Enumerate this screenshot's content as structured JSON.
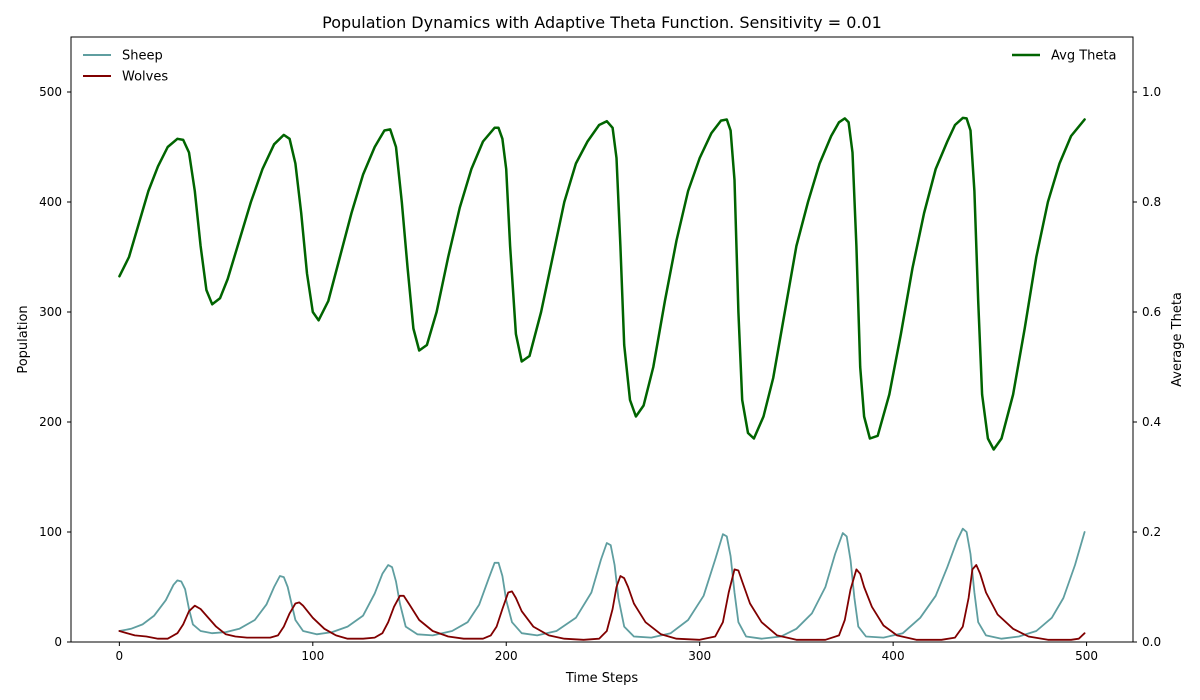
{
  "chart_data": {
    "type": "line",
    "title": "Population Dynamics with Adaptive Theta Function. Sensitivity = 0.01",
    "xlabel": "Time Steps",
    "ylabel": "Population",
    "y2label": "Average Theta",
    "xlim": [
      -25,
      524
    ],
    "ylim": [
      0,
      550
    ],
    "y2lim": [
      0,
      1.1
    ],
    "xticks": [
      0,
      100,
      200,
      300,
      400,
      500
    ],
    "yticks": [
      0,
      100,
      200,
      300,
      400,
      500
    ],
    "y2ticks": [
      0.0,
      0.2,
      0.4,
      0.6,
      0.8,
      1.0
    ],
    "legend_left": "upper-left",
    "legend_right": "upper-right",
    "series": [
      {
        "name": "Sheep",
        "axis": "left",
        "color": "#5f9ea0",
        "points": [
          [
            0,
            10
          ],
          [
            6,
            12
          ],
          [
            12,
            16
          ],
          [
            18,
            24
          ],
          [
            24,
            38
          ],
          [
            28,
            52
          ],
          [
            30,
            56
          ],
          [
            32,
            55
          ],
          [
            34,
            48
          ],
          [
            36,
            30
          ],
          [
            38,
            16
          ],
          [
            42,
            10
          ],
          [
            48,
            8
          ],
          [
            55,
            9
          ],
          [
            62,
            12
          ],
          [
            70,
            20
          ],
          [
            76,
            34
          ],
          [
            80,
            50
          ],
          [
            83,
            60
          ],
          [
            85,
            59
          ],
          [
            87,
            50
          ],
          [
            89,
            35
          ],
          [
            91,
            20
          ],
          [
            95,
            10
          ],
          [
            102,
            7
          ],
          [
            110,
            9
          ],
          [
            118,
            14
          ],
          [
            126,
            24
          ],
          [
            132,
            44
          ],
          [
            136,
            62
          ],
          [
            139,
            70
          ],
          [
            141,
            68
          ],
          [
            143,
            55
          ],
          [
            145,
            35
          ],
          [
            148,
            14
          ],
          [
            154,
            7
          ],
          [
            162,
            6
          ],
          [
            172,
            10
          ],
          [
            180,
            18
          ],
          [
            186,
            34
          ],
          [
            191,
            58
          ],
          [
            194,
            72
          ],
          [
            196,
            72
          ],
          [
            198,
            60
          ],
          [
            200,
            38
          ],
          [
            203,
            18
          ],
          [
            208,
            8
          ],
          [
            216,
            6
          ],
          [
            226,
            10
          ],
          [
            236,
            22
          ],
          [
            244,
            45
          ],
          [
            249,
            75
          ],
          [
            252,
            90
          ],
          [
            254,
            88
          ],
          [
            256,
            70
          ],
          [
            258,
            40
          ],
          [
            261,
            14
          ],
          [
            266,
            5
          ],
          [
            275,
            4
          ],
          [
            285,
            8
          ],
          [
            294,
            20
          ],
          [
            302,
            42
          ],
          [
            308,
            75
          ],
          [
            312,
            98
          ],
          [
            314,
            96
          ],
          [
            316,
            78
          ],
          [
            318,
            45
          ],
          [
            320,
            18
          ],
          [
            324,
            5
          ],
          [
            332,
            3
          ],
          [
            342,
            5
          ],
          [
            350,
            12
          ],
          [
            358,
            26
          ],
          [
            365,
            50
          ],
          [
            370,
            80
          ],
          [
            374,
            99
          ],
          [
            376,
            96
          ],
          [
            378,
            74
          ],
          [
            380,
            40
          ],
          [
            382,
            14
          ],
          [
            386,
            5
          ],
          [
            395,
            4
          ],
          [
            405,
            8
          ],
          [
            414,
            22
          ],
          [
            422,
            42
          ],
          [
            428,
            68
          ],
          [
            433,
            92
          ],
          [
            436,
            103
          ],
          [
            438,
            100
          ],
          [
            440,
            80
          ],
          [
            442,
            45
          ],
          [
            444,
            18
          ],
          [
            448,
            6
          ],
          [
            456,
            3
          ],
          [
            465,
            5
          ],
          [
            474,
            10
          ],
          [
            482,
            22
          ],
          [
            488,
            40
          ],
          [
            494,
            70
          ],
          [
            499,
            100
          ]
        ]
      },
      {
        "name": "Wolves",
        "axis": "left",
        "color": "#800000",
        "points": [
          [
            0,
            10
          ],
          [
            4,
            8
          ],
          [
            8,
            6
          ],
          [
            14,
            5
          ],
          [
            20,
            3
          ],
          [
            25,
            3
          ],
          [
            30,
            8
          ],
          [
            33,
            16
          ],
          [
            36,
            28
          ],
          [
            39,
            33
          ],
          [
            42,
            30
          ],
          [
            45,
            24
          ],
          [
            50,
            14
          ],
          [
            55,
            7
          ],
          [
            60,
            5
          ],
          [
            66,
            4
          ],
          [
            72,
            4
          ],
          [
            78,
            4
          ],
          [
            82,
            6
          ],
          [
            85,
            14
          ],
          [
            88,
            26
          ],
          [
            91,
            35
          ],
          [
            93,
            36
          ],
          [
            95,
            33
          ],
          [
            100,
            22
          ],
          [
            106,
            12
          ],
          [
            112,
            6
          ],
          [
            118,
            3
          ],
          [
            126,
            3
          ],
          [
            132,
            4
          ],
          [
            136,
            8
          ],
          [
            139,
            18
          ],
          [
            142,
            32
          ],
          [
            145,
            42
          ],
          [
            147,
            42
          ],
          [
            150,
            34
          ],
          [
            155,
            20
          ],
          [
            162,
            10
          ],
          [
            170,
            5
          ],
          [
            178,
            3
          ],
          [
            188,
            3
          ],
          [
            192,
            6
          ],
          [
            195,
            14
          ],
          [
            198,
            30
          ],
          [
            201,
            45
          ],
          [
            203,
            46
          ],
          [
            205,
            40
          ],
          [
            208,
            28
          ],
          [
            214,
            14
          ],
          [
            222,
            6
          ],
          [
            230,
            3
          ],
          [
            240,
            2
          ],
          [
            248,
            3
          ],
          [
            252,
            10
          ],
          [
            255,
            30
          ],
          [
            257,
            50
          ],
          [
            259,
            60
          ],
          [
            261,
            58
          ],
          [
            263,
            50
          ],
          [
            266,
            35
          ],
          [
            272,
            18
          ],
          [
            280,
            7
          ],
          [
            288,
            3
          ],
          [
            300,
            2
          ],
          [
            308,
            5
          ],
          [
            312,
            18
          ],
          [
            315,
            45
          ],
          [
            318,
            66
          ],
          [
            320,
            65
          ],
          [
            322,
            55
          ],
          [
            326,
            35
          ],
          [
            332,
            18
          ],
          [
            340,
            6
          ],
          [
            350,
            2
          ],
          [
            365,
            2
          ],
          [
            372,
            6
          ],
          [
            375,
            20
          ],
          [
            378,
            48
          ],
          [
            381,
            66
          ],
          [
            383,
            62
          ],
          [
            385,
            50
          ],
          [
            389,
            32
          ],
          [
            395,
            15
          ],
          [
            402,
            6
          ],
          [
            412,
            2
          ],
          [
            425,
            2
          ],
          [
            432,
            4
          ],
          [
            436,
            14
          ],
          [
            439,
            40
          ],
          [
            441,
            66
          ],
          [
            443,
            70
          ],
          [
            445,
            62
          ],
          [
            448,
            45
          ],
          [
            454,
            25
          ],
          [
            462,
            12
          ],
          [
            470,
            5
          ],
          [
            480,
            2
          ],
          [
            492,
            2
          ],
          [
            496,
            3
          ],
          [
            499,
            8
          ]
        ]
      },
      {
        "name": "Avg Theta",
        "axis": "right",
        "color": "#006400",
        "points": [
          [
            0,
            0.665
          ],
          [
            5,
            0.7
          ],
          [
            10,
            0.76
          ],
          [
            15,
            0.82
          ],
          [
            20,
            0.865
          ],
          [
            25,
            0.9
          ],
          [
            30,
            0.915
          ],
          [
            33,
            0.913
          ],
          [
            36,
            0.89
          ],
          [
            39,
            0.82
          ],
          [
            42,
            0.72
          ],
          [
            45,
            0.64
          ],
          [
            48,
            0.614
          ],
          [
            52,
            0.625
          ],
          [
            56,
            0.66
          ],
          [
            62,
            0.73
          ],
          [
            68,
            0.8
          ],
          [
            74,
            0.86
          ],
          [
            80,
            0.905
          ],
          [
            85,
            0.922
          ],
          [
            88,
            0.915
          ],
          [
            91,
            0.87
          ],
          [
            94,
            0.78
          ],
          [
            97,
            0.67
          ],
          [
            100,
            0.6
          ],
          [
            103,
            0.585
          ],
          [
            108,
            0.62
          ],
          [
            114,
            0.7
          ],
          [
            120,
            0.78
          ],
          [
            126,
            0.85
          ],
          [
            132,
            0.9
          ],
          [
            137,
            0.93
          ],
          [
            140,
            0.932
          ],
          [
            143,
            0.9
          ],
          [
            146,
            0.8
          ],
          [
            149,
            0.68
          ],
          [
            152,
            0.57
          ],
          [
            155,
            0.53
          ],
          [
            159,
            0.54
          ],
          [
            164,
            0.6
          ],
          [
            170,
            0.7
          ],
          [
            176,
            0.79
          ],
          [
            182,
            0.86
          ],
          [
            188,
            0.91
          ],
          [
            194,
            0.935
          ],
          [
            196,
            0.935
          ],
          [
            198,
            0.915
          ],
          [
            200,
            0.86
          ],
          [
            202,
            0.72
          ],
          [
            205,
            0.56
          ],
          [
            208,
            0.51
          ],
          [
            212,
            0.52
          ],
          [
            218,
            0.6
          ],
          [
            224,
            0.7
          ],
          [
            230,
            0.8
          ],
          [
            236,
            0.87
          ],
          [
            242,
            0.91
          ],
          [
            248,
            0.94
          ],
          [
            252,
            0.947
          ],
          [
            255,
            0.935
          ],
          [
            257,
            0.88
          ],
          [
            259,
            0.72
          ],
          [
            261,
            0.54
          ],
          [
            264,
            0.44
          ],
          [
            267,
            0.41
          ],
          [
            271,
            0.43
          ],
          [
            276,
            0.5
          ],
          [
            282,
            0.62
          ],
          [
            288,
            0.73
          ],
          [
            294,
            0.82
          ],
          [
            300,
            0.88
          ],
          [
            306,
            0.925
          ],
          [
            311,
            0.948
          ],
          [
            314,
            0.95
          ],
          [
            316,
            0.93
          ],
          [
            318,
            0.84
          ],
          [
            320,
            0.6
          ],
          [
            322,
            0.44
          ],
          [
            325,
            0.38
          ],
          [
            328,
            0.37
          ],
          [
            333,
            0.41
          ],
          [
            338,
            0.48
          ],
          [
            344,
            0.6
          ],
          [
            350,
            0.72
          ],
          [
            356,
            0.8
          ],
          [
            362,
            0.87
          ],
          [
            368,
            0.92
          ],
          [
            372,
            0.945
          ],
          [
            375,
            0.952
          ],
          [
            377,
            0.945
          ],
          [
            379,
            0.89
          ],
          [
            381,
            0.72
          ],
          [
            383,
            0.5
          ],
          [
            385,
            0.41
          ],
          [
            388,
            0.37
          ],
          [
            392,
            0.375
          ],
          [
            398,
            0.45
          ],
          [
            404,
            0.56
          ],
          [
            410,
            0.68
          ],
          [
            416,
            0.78
          ],
          [
            422,
            0.86
          ],
          [
            428,
            0.91
          ],
          [
            432,
            0.94
          ],
          [
            436,
            0.953
          ],
          [
            438,
            0.952
          ],
          [
            440,
            0.93
          ],
          [
            442,
            0.82
          ],
          [
            444,
            0.62
          ],
          [
            446,
            0.45
          ],
          [
            449,
            0.37
          ],
          [
            452,
            0.35
          ],
          [
            456,
            0.37
          ],
          [
            462,
            0.45
          ],
          [
            468,
            0.57
          ],
          [
            474,
            0.7
          ],
          [
            480,
            0.8
          ],
          [
            486,
            0.87
          ],
          [
            492,
            0.92
          ],
          [
            499,
            0.95
          ]
        ]
      }
    ]
  }
}
